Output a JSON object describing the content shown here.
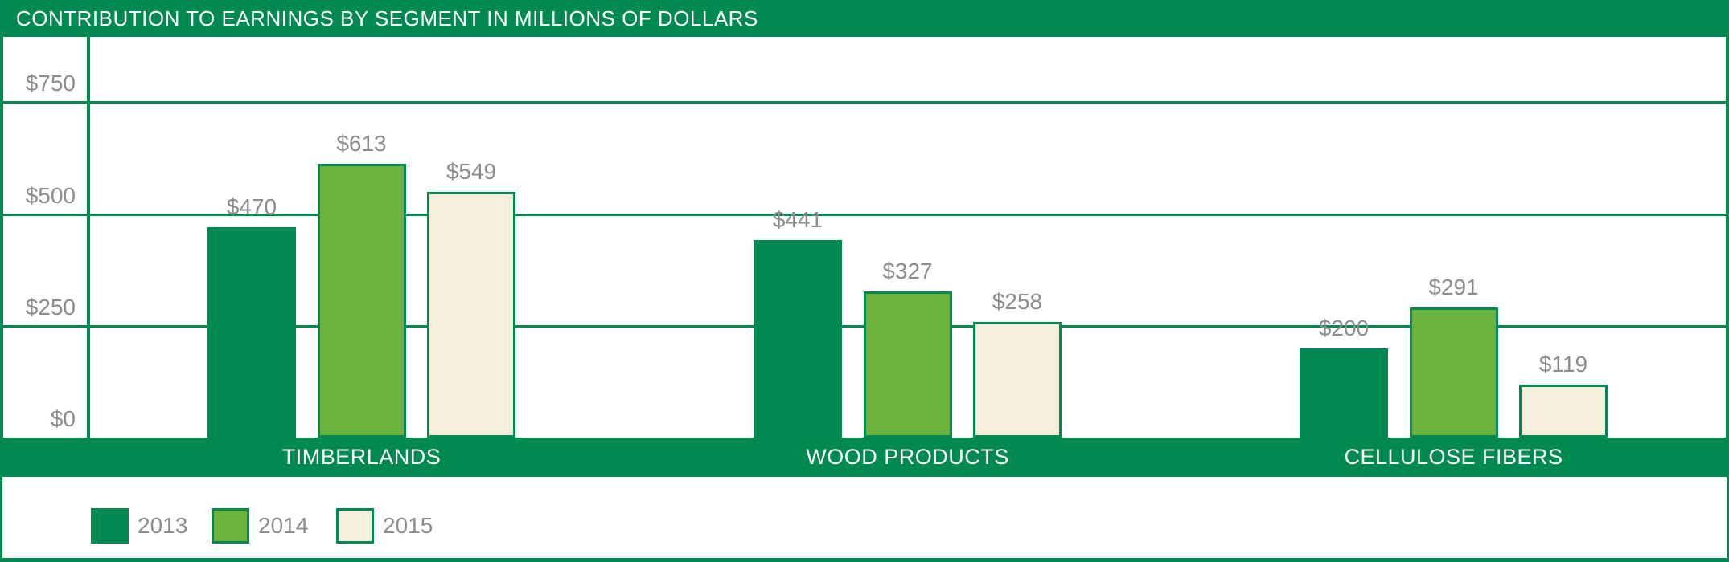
{
  "header": {
    "title": "CONTRIBUTION TO EARNINGS BY SEGMENT IN MILLIONS OF DOLLARS"
  },
  "colors": {
    "brand_green": "#008A52",
    "lime_green": "#6CB33E",
    "cream": "#F5F0DB",
    "label_gray": "#8A8C8F",
    "white": "#FFFFFF"
  },
  "y_axis": {
    "ticks": [
      {
        "label": "$750",
        "value": 750
      },
      {
        "label": "$500",
        "value": 500
      },
      {
        "label": "$250",
        "value": 250
      },
      {
        "label": "$0",
        "value": 0
      }
    ]
  },
  "chart_data": {
    "type": "bar",
    "title": "CONTRIBUTION TO EARNINGS BY SEGMENT IN MILLIONS OF DOLLARS",
    "categories": [
      "TIMBERLANDS",
      "WOOD PRODUCTS",
      "CELLULOSE FIBERS"
    ],
    "series": [
      {
        "name": "2013",
        "color": "#008A52",
        "border_color": "#008A52",
        "values": [
          470,
          441,
          200
        ],
        "value_labels": [
          "$470",
          "$441",
          "$200"
        ]
      },
      {
        "name": "2014",
        "color": "#6CB33E",
        "border_color": "#008A52",
        "values": [
          613,
          327,
          291
        ],
        "value_labels": [
          "$613",
          "$327",
          "$291"
        ]
      },
      {
        "name": "2015",
        "color": "#F5F0DB",
        "border_color": "#008A52",
        "values": [
          549,
          258,
          119
        ],
        "value_labels": [
          "$549",
          "$258",
          "$119"
        ]
      }
    ],
    "xlabel": "",
    "ylabel": "",
    "ylim": [
      0,
      875
    ],
    "yticks": [
      0,
      250,
      500,
      750
    ],
    "grid": true,
    "legend_position": "bottom-left",
    "currency_prefix": "$"
  },
  "legend": {
    "items": [
      {
        "label": "2013",
        "fill": "#008A52",
        "border": "#008A52"
      },
      {
        "label": "2014",
        "fill": "#6CB33E",
        "border": "#008A52"
      },
      {
        "label": "2015",
        "fill": "#F5F0DB",
        "border": "#008A52"
      }
    ]
  }
}
